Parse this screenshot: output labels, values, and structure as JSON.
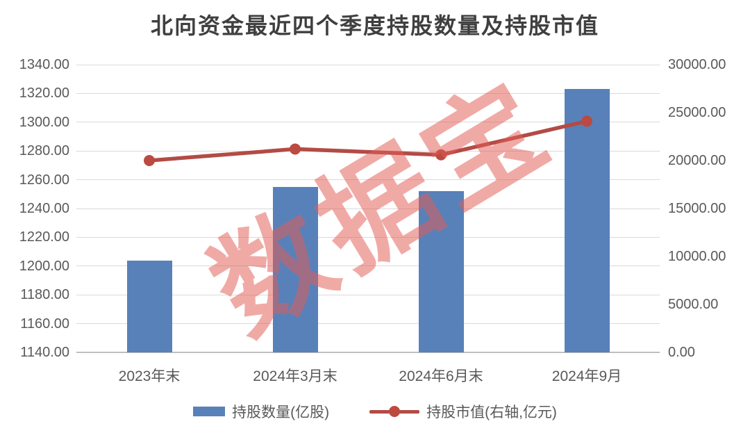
{
  "title": "北向资金最近四个季度持股数量及持股市值",
  "watermark": "数据宝",
  "colors": {
    "bar": "#5881ba",
    "line": "#b34b45",
    "marker": "#bb4a40",
    "grid": "#d9d9d9",
    "baseline": "#bfbfbf",
    "axis_text": "#595959",
    "title_text": "#3f3f3f",
    "watermark": "rgba(226,92,84,0.52)"
  },
  "chart_data": {
    "type": "bar",
    "subtype": "bar+line combo, dual axis",
    "title": "北向资金最近四个季度持股数量及持股市值",
    "categories": [
      "2023年末",
      "2024年3月末",
      "2024年6月末",
      "2024年9月"
    ],
    "series": [
      {
        "name": "持股数量(亿股)",
        "type": "bar",
        "axis": "left",
        "color": "#5881ba",
        "values": [
          1204,
          1255,
          1252,
          1323
        ]
      },
      {
        "name": "持股市值(右轴,亿元)",
        "type": "line",
        "axis": "right",
        "color": "#b34b45",
        "values": [
          20000,
          21200,
          20600,
          24100
        ]
      }
    ],
    "left_axis": {
      "min": 1140,
      "max": 1340,
      "step": 20,
      "tick_labels": [
        "1340.00",
        "1320.00",
        "1300.00",
        "1280.00",
        "1260.00",
        "1240.00",
        "1220.00",
        "1200.00",
        "1180.00",
        "1160.00",
        "1140.00"
      ]
    },
    "right_axis": {
      "min": 0,
      "max": 30000,
      "step": 5000,
      "tick_labels": [
        "30000.00",
        "25000.00",
        "20000.00",
        "15000.00",
        "10000.00",
        "5000.00",
        "0.00"
      ]
    },
    "grid": "horizontal only",
    "legend_position": "bottom"
  },
  "legend": {
    "bar_label": "持股数量(亿股)",
    "line_label": "持股市值(右轴,亿元)"
  }
}
